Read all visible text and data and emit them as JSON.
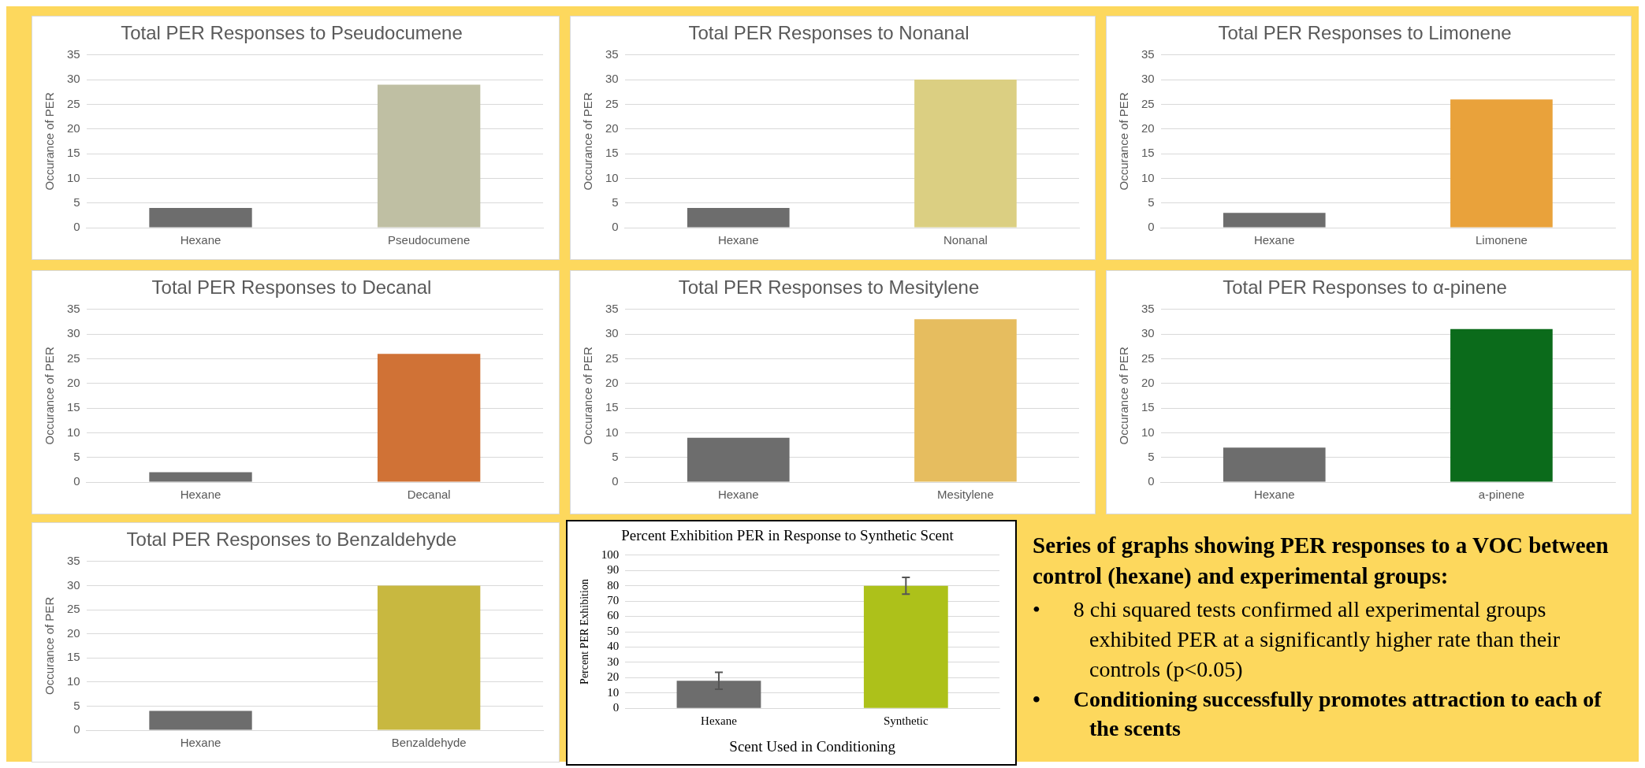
{
  "chart_data": [
    {
      "type": "bar",
      "title": "Total PER Responses to Pseudocumene",
      "ylabel": "Occurance of PER",
      "categories": [
        "Hexane",
        "Pseudocumene"
      ],
      "values": [
        4,
        29
      ],
      "colors": [
        "#6d6d6d",
        "#bfbfa3"
      ],
      "ylim": [
        0,
        35
      ],
      "yticks": [
        0,
        5,
        10,
        15,
        20,
        25,
        30,
        35
      ],
      "grid": "y",
      "legend": false
    },
    {
      "type": "bar",
      "title": "Total PER Responses to Nonanal",
      "ylabel": "Occurance of PER",
      "categories": [
        "Hexane",
        "Nonanal"
      ],
      "values": [
        4,
        30
      ],
      "colors": [
        "#6d6d6d",
        "#dbcf82"
      ],
      "ylim": [
        0,
        35
      ],
      "yticks": [
        0,
        5,
        10,
        15,
        20,
        25,
        30,
        35
      ],
      "grid": "y",
      "legend": false
    },
    {
      "type": "bar",
      "title": "Total PER Responses to Limonene",
      "ylabel": "Occurance of PER",
      "categories": [
        "Hexane",
        "Limonene"
      ],
      "values": [
        3,
        26
      ],
      "colors": [
        "#6d6d6d",
        "#e9a23b"
      ],
      "ylim": [
        0,
        35
      ],
      "yticks": [
        0,
        5,
        10,
        15,
        20,
        25,
        30,
        35
      ],
      "grid": "y",
      "legend": false
    },
    {
      "type": "bar",
      "title": "Total PER Responses to Decanal",
      "ylabel": "Occurance of PER",
      "categories": [
        "Hexane",
        "Decanal"
      ],
      "values": [
        2,
        26
      ],
      "colors": [
        "#6d6d6d",
        "#d07236"
      ],
      "ylim": [
        0,
        35
      ],
      "yticks": [
        0,
        5,
        10,
        15,
        20,
        25,
        30,
        35
      ],
      "grid": "y",
      "legend": false
    },
    {
      "type": "bar",
      "title": "Total PER Responses to Mesitylene",
      "ylabel": "Occurance of PER",
      "categories": [
        "Hexane",
        "Mesitylene"
      ],
      "values": [
        9,
        33
      ],
      "colors": [
        "#6d6d6d",
        "#e6bd5f"
      ],
      "ylim": [
        0,
        35
      ],
      "yticks": [
        0,
        5,
        10,
        15,
        20,
        25,
        30,
        35
      ],
      "grid": "y",
      "legend": false
    },
    {
      "type": "bar",
      "title": "Total PER Responses to α-pinene",
      "ylabel": "Occurance of PER",
      "categories": [
        "Hexane",
        "a-pinene"
      ],
      "values": [
        7,
        31
      ],
      "colors": [
        "#6d6d6d",
        "#0b6b1b"
      ],
      "ylim": [
        0,
        35
      ],
      "yticks": [
        0,
        5,
        10,
        15,
        20,
        25,
        30,
        35
      ],
      "grid": "y",
      "legend": false
    },
    {
      "type": "bar",
      "title": "Total PER Responses to Benzaldehyde",
      "ylabel": "Occurance of PER",
      "categories": [
        "Hexane",
        "Benzaldehyde"
      ],
      "values": [
        4,
        30
      ],
      "colors": [
        "#6d6d6d",
        "#c8b840"
      ],
      "ylim": [
        0,
        35
      ],
      "yticks": [
        0,
        5,
        10,
        15,
        20,
        25,
        30,
        35
      ],
      "grid": "y",
      "legend": false
    },
    {
      "type": "bar",
      "title": "Percent Exhibition PER in Response to Synthetic Scent",
      "xlabel": "Scent Used in Conditioning",
      "ylabel": "Percent PER Exhibition",
      "categories": [
        "Hexane",
        "Synthetic"
      ],
      "values": [
        18,
        80
      ],
      "errors": [
        5.5,
        5.5
      ],
      "colors": [
        "#6d6d6d",
        "#adc11a"
      ],
      "ylim": [
        0,
        100
      ],
      "yticks": [
        0,
        10,
        20,
        30,
        40,
        50,
        60,
        70,
        80,
        90,
        100
      ],
      "grid": "y",
      "legend": false
    },
    {
      "type": "other",
      "title": "Series of graphs showing PER responses to a VOC between control (hexane) and experimental groups:",
      "annotations": [
        "•      8 chi squared tests confirmed all experimental groups exhibited PER at a significantly higher rate than their controls (p<0.05)",
        "•      Conditioning successfully promotes attraction to each of the scents"
      ]
    }
  ]
}
